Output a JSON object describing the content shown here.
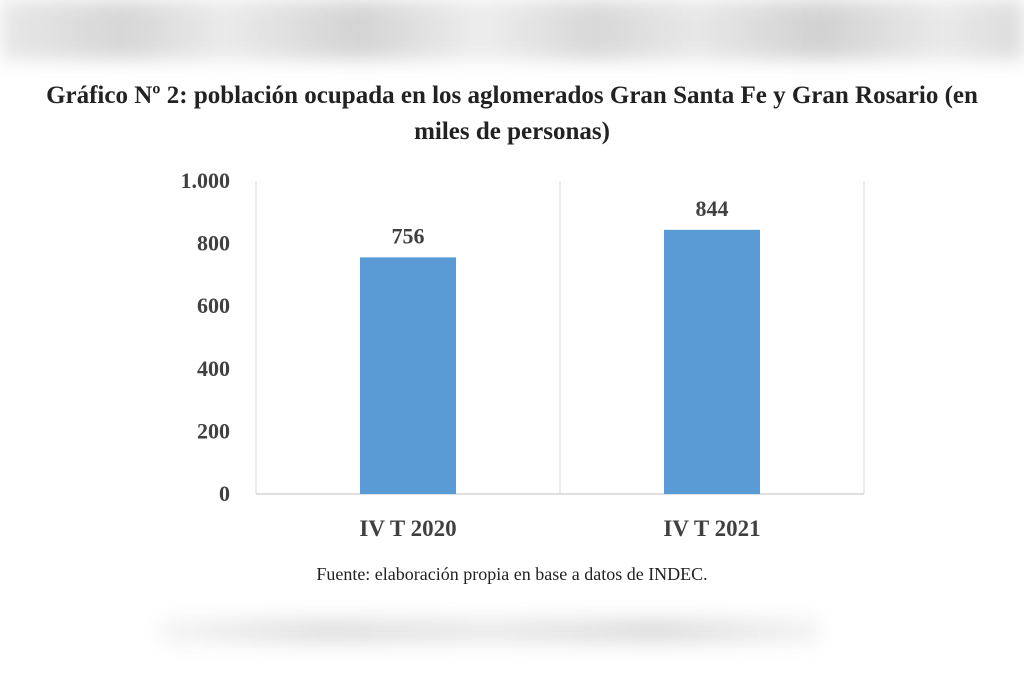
{
  "title": "Gráfico Nº 2: población ocupada en los aglomerados Gran Santa Fe y Gran Rosario (en miles de personas)",
  "source": "Fuente: elaboración propia en base a datos de INDEC.",
  "chart_data": {
    "type": "bar",
    "title": "Gráfico Nº 2: población ocupada en los aglomerados Gran Santa Fe y Gran Rosario (en miles de personas)",
    "categories": [
      "IV T 2020",
      "IV T 2021"
    ],
    "values": [
      756,
      844
    ],
    "data_labels": [
      "756",
      "844"
    ],
    "ylim": [
      0,
      1000
    ],
    "yticks": [
      0,
      200,
      400,
      600,
      800,
      1000
    ],
    "ytick_labels": [
      "0",
      "200",
      "400",
      "600",
      "800",
      "1.000"
    ],
    "xlabel": "",
    "ylabel": "",
    "grid": "vertical category separators",
    "legend": "none",
    "bar_color": "#5b9bd5"
  }
}
